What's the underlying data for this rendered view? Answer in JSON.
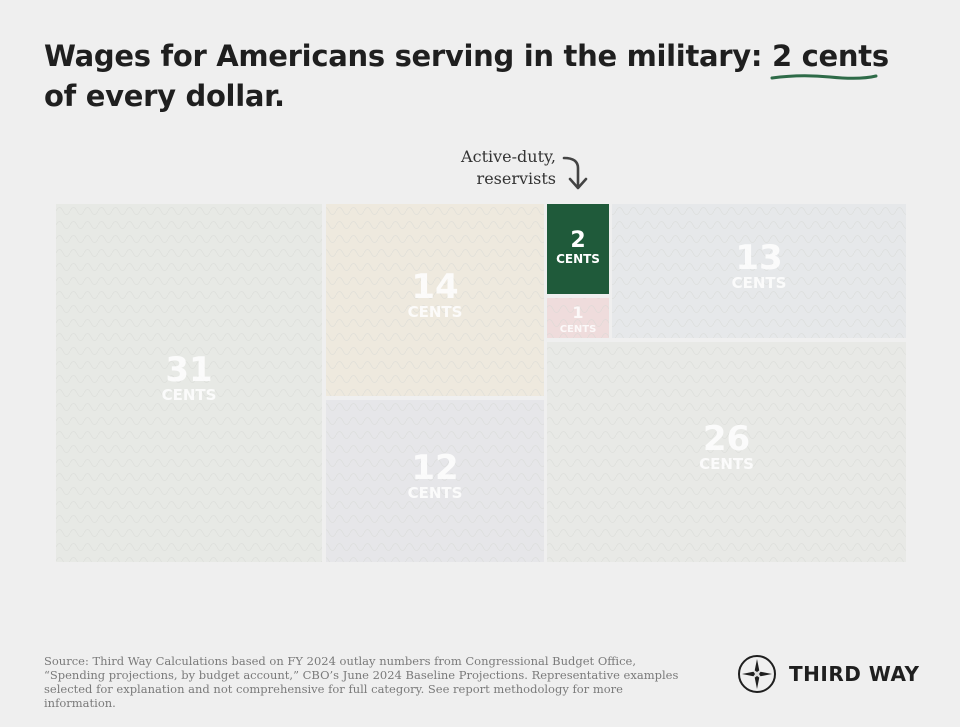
{
  "header": {
    "title_before": "Wages for Americans serving in the military: ",
    "title_highlight": "2 cents",
    "title_after": " of every dollar."
  },
  "annotation": {
    "line1": "Active-duty,",
    "line2": "reservists"
  },
  "chart_data": {
    "type": "treemap",
    "unit_label": "CENTS",
    "highlight_color": "#1f5a3a",
    "values": [
      31,
      14,
      12,
      2,
      1,
      13,
      26
    ],
    "highlight_index": 3
  },
  "footer": {
    "source": "Source: Third Way Calculations based on FY 2024 outlay numbers from Congressional Budget Office, “Spending projections, by budget account,” CBO’s June 2024 Baseline Projections. Representative examples selected for explanation and not comprehensive for full category. See report methodology for more information."
  },
  "brand": {
    "name": "THIRD WAY",
    "icon": "compass-star-icon"
  }
}
